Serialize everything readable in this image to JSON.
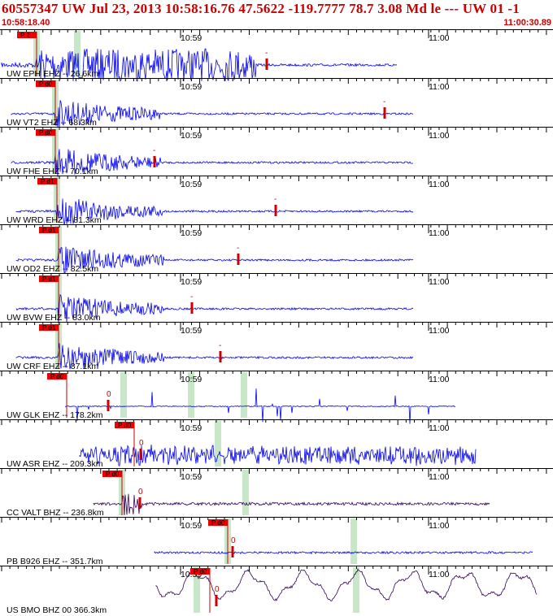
{
  "header": {
    "title": "60557347 UW Jul 23, 2013 10:58:16.76    47.5622 -119.7777 78.7 3.08 Md le --- UW 01   -1",
    "start_time": "10:58:18.40",
    "end_time": "11:00:30.89"
  },
  "colors": {
    "trace": "#0000ee",
    "trace_broadband": "#330055",
    "pick": "#cc0000",
    "phase_box": "#ee0000",
    "arrival_band": "#c8e6c8",
    "tick": "#000000"
  },
  "chart_data": {
    "type": "line",
    "time_start": "10:58:18.40",
    "time_end": "11:00:30.89",
    "minute_labels": [
      "10:59",
      "11:00"
    ],
    "traces": [
      {
        "label": "UW EPH EHZ -- 26.6km",
        "phase": "P 2",
        "pick": "-",
        "style": "sat"
      },
      {
        "label": "UW VT2 EHZ -- 68.3km",
        "phase": "P d0",
        "pick": "-",
        "style": "burst"
      },
      {
        "label": "UW FHE EHZ -- 70.1km",
        "phase": "P d0",
        "pick": "-",
        "style": "burst"
      },
      {
        "label": "UW WRD EHZ -- 81.3km",
        "phase": "P d1",
        "pick": "-",
        "style": "burst"
      },
      {
        "label": "UW OD2 EHZ -- 82.5km",
        "phase": "P d1",
        "pick": "-",
        "style": "burst"
      },
      {
        "label": "UW BVW EHZ -- 83.0km",
        "phase": "P d1",
        "pick": "-",
        "style": "burst"
      },
      {
        "label": "UW CRF EHZ -- 87.1km",
        "phase": "P d1",
        "pick": "-",
        "style": "burst"
      },
      {
        "label": "UW GLK EHZ -- 178.2km",
        "phase": "P d0",
        "pick": "0",
        "style": "spiky"
      },
      {
        "label": "UW ASR EHZ -- 209.3km",
        "phase": "P d0",
        "pick": "0",
        "style": "noisy"
      },
      {
        "label": "CC VALT BHZ -- 236.8km",
        "phase": "P d0",
        "pick": "0",
        "style": "quiet"
      },
      {
        "label": "PB B926 EHZ -- 351.7km",
        "phase": "P d0",
        "pick": "0",
        "style": "thin"
      },
      {
        "label": "US BMO BHZ 00 366.3km",
        "phase": "P d0",
        "pick": "0",
        "style": "wavy"
      }
    ]
  }
}
